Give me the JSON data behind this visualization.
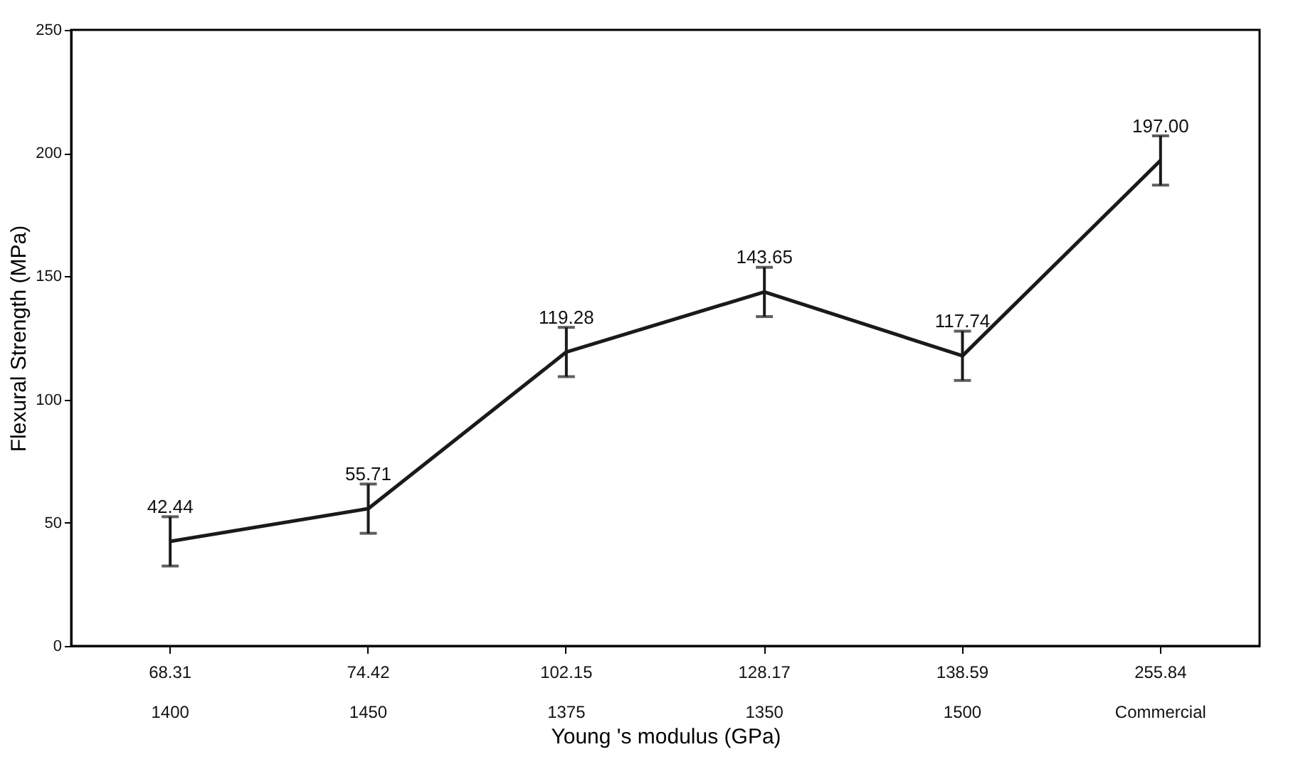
{
  "chart_data": {
    "type": "line",
    "xlabel": "Young 's modulus (GPa)",
    "ylabel": "Flexural Strength (MPa)",
    "categories": [
      "68.31\n1400",
      "74.42\n1450",
      "102.15\n1375",
      "128.17\n1350",
      "138.59\n1500",
      "255.84\nCommercial"
    ],
    "series": [
      {
        "color": "#1a1a1a",
        "values": [
          42.44,
          55.71,
          119.28,
          143.65,
          117.74,
          197.0
        ],
        "errors": [
          10,
          10,
          10,
          10,
          10,
          10
        ],
        "value_labels": [
          "42.44",
          "55.71",
          "119.28",
          "143.65",
          "117.74",
          "197.00"
        ]
      }
    ],
    "ylim": [
      0,
      250
    ],
    "yticks": [
      0,
      50,
      100,
      150,
      200,
      250
    ],
    "grid": false,
    "marker": "none",
    "line_style": "solid"
  }
}
